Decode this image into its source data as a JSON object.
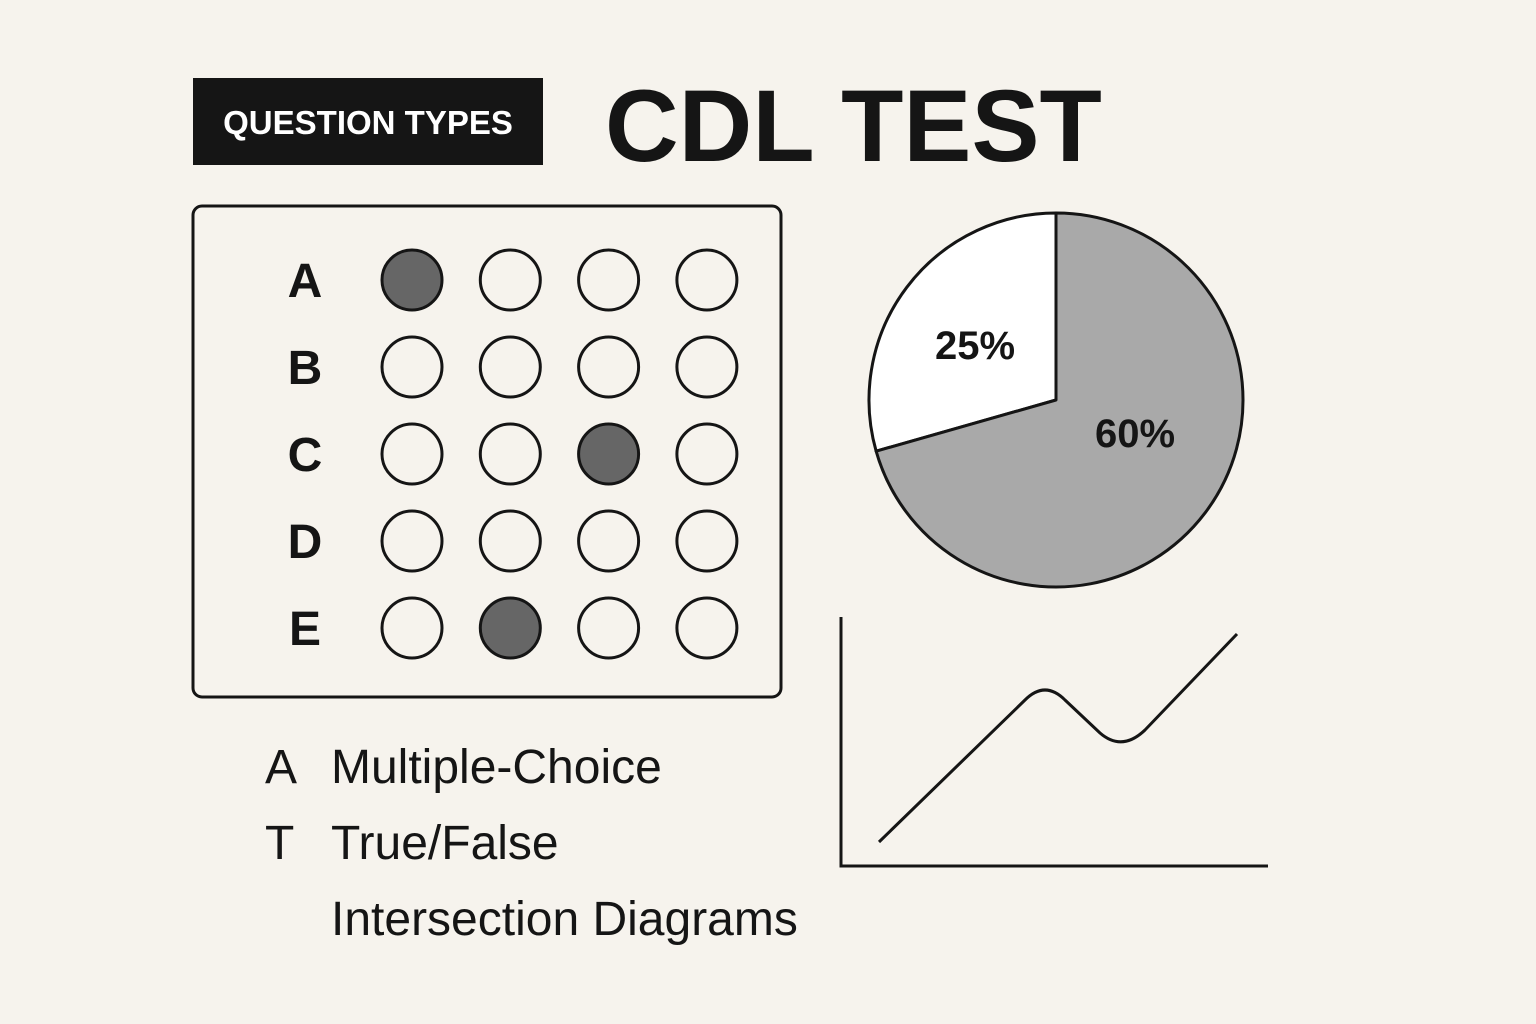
{
  "header": {
    "badge": "QUESTION TYPES",
    "title": "CDL TEST"
  },
  "answer_sheet": {
    "choices": 4,
    "rows": [
      {
        "label": "A",
        "filled": 0
      },
      {
        "label": "B"
      },
      {
        "label": "C",
        "filled": 2
      },
      {
        "label": "D"
      },
      {
        "label": "E",
        "filled": 1
      }
    ]
  },
  "pie": {
    "slices": [
      {
        "value": 25,
        "label": "25%",
        "color": "#ffffff"
      },
      {
        "value": 60,
        "label": "60%",
        "color": "#a9a9a9"
      }
    ]
  },
  "question_types": [
    {
      "key": "A",
      "name": "Multiple-Choice"
    },
    {
      "key": "T",
      "name": "True/False"
    },
    {
      "name": "Intersection Diagrams"
    }
  ]
}
